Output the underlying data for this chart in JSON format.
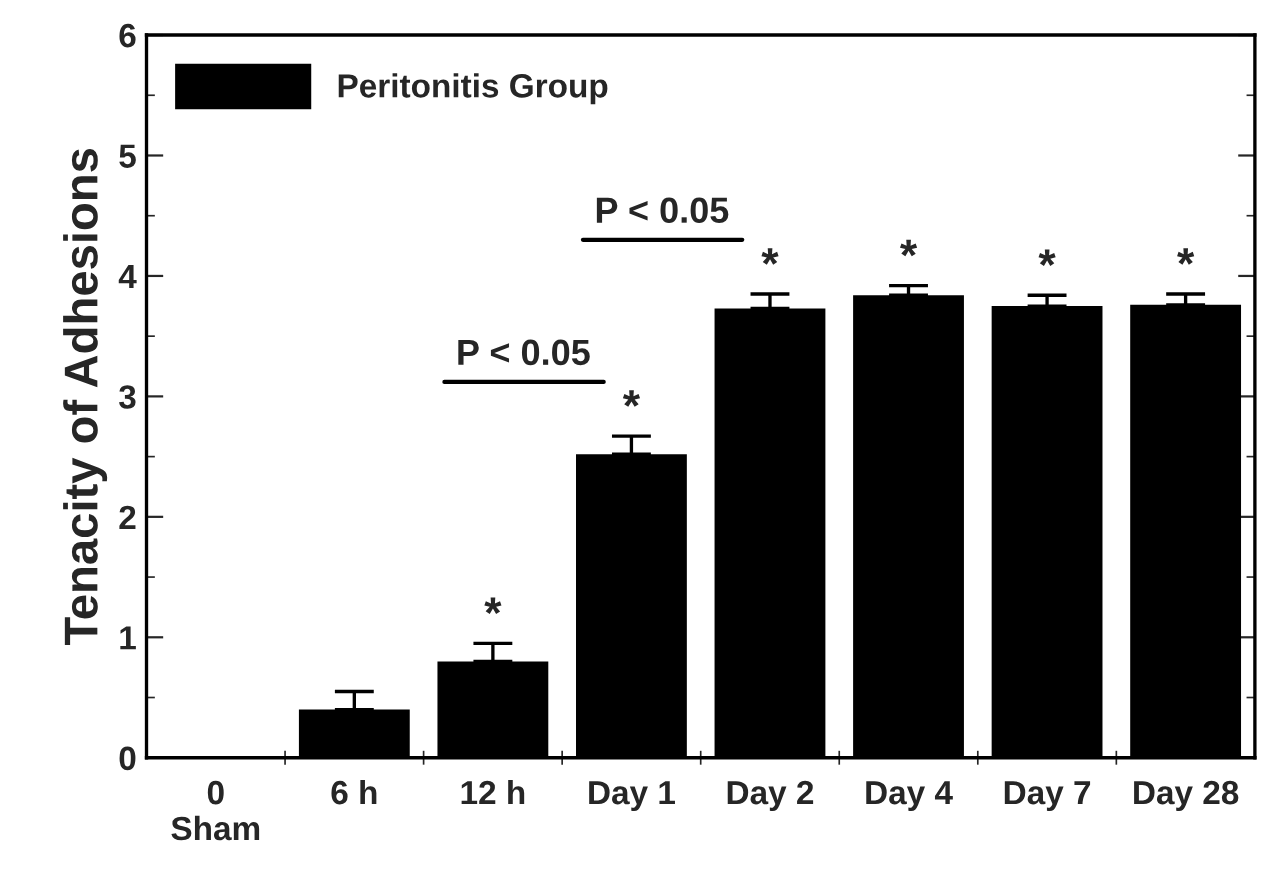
{
  "chart_data": {
    "type": "bar",
    "ylabel": "Tenacity of Adhesions",
    "categories": [
      "0\nSham",
      "6 h",
      "12 h",
      "Day 1",
      "Day 2",
      "Day 4",
      "Day 7",
      "Day 28"
    ],
    "series": [
      {
        "name": "Peritonitis Group",
        "color": "#000000",
        "values": [
          0,
          0.4,
          0.8,
          2.52,
          3.73,
          3.84,
          3.75,
          3.76
        ],
        "errors": [
          null,
          0.15,
          0.15,
          0.15,
          0.12,
          0.08,
          0.09,
          0.09
        ]
      }
    ],
    "ylim": [
      0,
      6
    ],
    "yticks": [
      0,
      1,
      2,
      3,
      4,
      5,
      6
    ],
    "grid": false,
    "legend": "top left",
    "annotations": [
      "P < 0.05",
      "P < 0.05",
      "*",
      "*",
      "*",
      "*",
      "*",
      "*"
    ]
  }
}
